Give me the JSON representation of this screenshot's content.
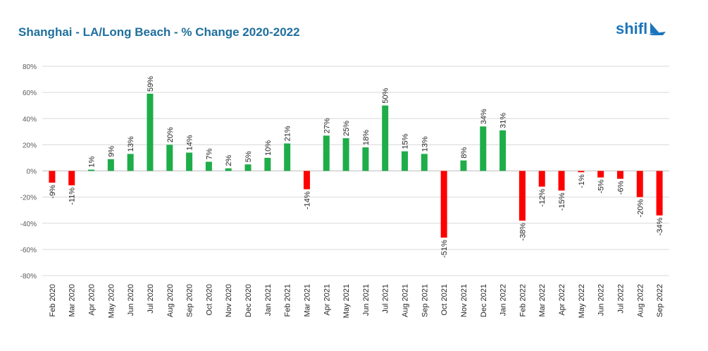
{
  "header": {
    "title": "Shanghai - LA/Long Beach - % Change 2020-2022"
  },
  "logo": {
    "text": "shifl",
    "icon": "sail-icon"
  },
  "colors": {
    "positive": "#1fad4a",
    "negative": "#ff0000",
    "title": "#1f6f9e",
    "logo": "#1b75bc",
    "grid": "#d9d9d9",
    "text": "#595959"
  },
  "chart_data": {
    "type": "bar",
    "title": "Shanghai - LA/Long Beach - % Change 2020-2022",
    "xlabel": "",
    "ylabel": "",
    "ylim": [
      -80,
      80
    ],
    "yticks": [
      80,
      60,
      40,
      20,
      0,
      -20,
      -40,
      -60,
      -80
    ],
    "ytick_labels": [
      "80%",
      "60%",
      "40%",
      "20%",
      "0%",
      "-20%",
      "-40%",
      "-60%",
      "-80%"
    ],
    "grid": true,
    "categories": [
      "Feb 2020",
      "Mar 2020",
      "Apr 2020",
      "May 2020",
      "Jun 2020",
      "Jul 2020",
      "Aug 2020",
      "Sep 2020",
      "Oct 2020",
      "Nov 2020",
      "Dec 2020",
      "Jan 2021",
      "Feb 2021",
      "Mar 2021",
      "Apr 2021",
      "May 2021",
      "Jun 2021",
      "Jul 2021",
      "Aug 2021",
      "Sep 2021",
      "Oct 2021",
      "Nov 2021",
      "Dec 2021",
      "Jan 2022",
      "Feb 2022",
      "Mar 2022",
      "Apr 2022",
      "May 2022",
      "Jun 2022",
      "Jul 2022",
      "Aug 2022",
      "Sep 2022"
    ],
    "values": [
      -9,
      -11,
      1,
      9,
      13,
      59,
      20,
      14,
      7,
      2,
      5,
      10,
      21,
      -14,
      27,
      25,
      18,
      50,
      15,
      13,
      -51,
      8,
      34,
      31,
      -38,
      -12,
      -15,
      -1,
      -5,
      -6,
      -20,
      -34
    ],
    "data_labels": [
      "-9%",
      "-11%",
      "1%",
      "9%",
      "13%",
      "59%",
      "20%",
      "14%",
      "7%",
      "2%",
      "5%",
      "10%",
      "21%",
      "-14%",
      "27%",
      "25%",
      "18%",
      "50%",
      "15%",
      "13%",
      "-51%",
      "8%",
      "34%",
      "31%",
      "-38%",
      "-12%",
      "-15%",
      "-1%",
      "-5%",
      "-6%",
      "-20%",
      "-34%"
    ]
  }
}
